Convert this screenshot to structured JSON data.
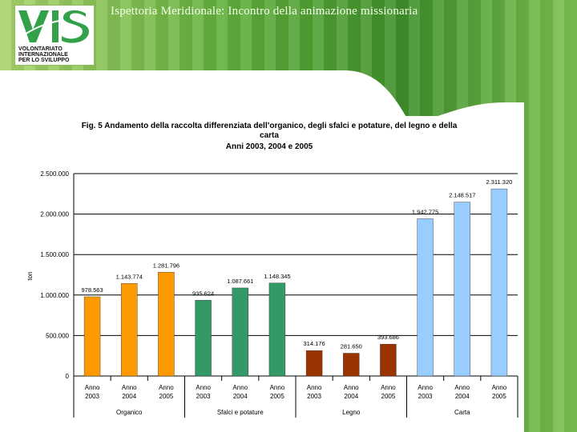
{
  "slide": {
    "title": "Ispettoria Meridionale: Incontro della animazione missionaria"
  },
  "logo": {
    "text": "VIS",
    "line1": "VOLONTARIATO",
    "line2": "INTERNAZIONALE",
    "line3": "PER LO SVILUPPO"
  },
  "chart_data": {
    "type": "bar",
    "title": "Fig. 5  Andamento della raccolta differenziata dell'organico, degli sfalci e potature, del legno e della carta",
    "title_line1": "Fig. 5  Andamento della raccolta differenziata dell’organico, degli sfalci e potature, del legno e della",
    "title_line2": "carta",
    "subtitle": "Anni 2003, 2004 e 2005",
    "ylabel": "ton",
    "ylim": [
      0,
      2500000
    ],
    "yticks": [
      0,
      500000,
      1000000,
      1500000,
      2000000,
      2500000
    ],
    "ytick_labels": [
      "0",
      "500.000",
      "1.000.000",
      "1.500.000",
      "2.000.000",
      "2.500.000"
    ],
    "groups": [
      {
        "name": "Organico",
        "color": "#ff9900",
        "bars": [
          {
            "year": "2003",
            "value": 978563,
            "label": "978.563"
          },
          {
            "year": "2004",
            "value": 1143774,
            "label": "1.143.774"
          },
          {
            "year": "2005",
            "value": 1281796,
            "label": "1.281.796"
          }
        ]
      },
      {
        "name": "Sfalci e potature",
        "color": "#339966",
        "bars": [
          {
            "year": "2003",
            "value": 935624,
            "label": "935.624"
          },
          {
            "year": "2004",
            "value": 1087661,
            "label": "1.087.661"
          },
          {
            "year": "2005",
            "value": 1148345,
            "label": "1.148.345"
          }
        ]
      },
      {
        "name": "Legno",
        "color": "#993300",
        "bars": [
          {
            "year": "2003",
            "value": 314176,
            "label": "314.176"
          },
          {
            "year": "2004",
            "value": 281650,
            "label": "281.650"
          },
          {
            "year": "2005",
            "value": 393686,
            "label": "393.686"
          }
        ]
      },
      {
        "name": "Carta",
        "color": "#99ccff",
        "bars": [
          {
            "year": "2003",
            "value": 1942775,
            "label": "1.942.775"
          },
          {
            "year": "2004",
            "value": 2148517,
            "label": "2.148.517"
          },
          {
            "year": "2005",
            "value": 2311320,
            "label": "2.311.320"
          }
        ]
      }
    ],
    "category_prefix": "Anno",
    "grid": true
  }
}
